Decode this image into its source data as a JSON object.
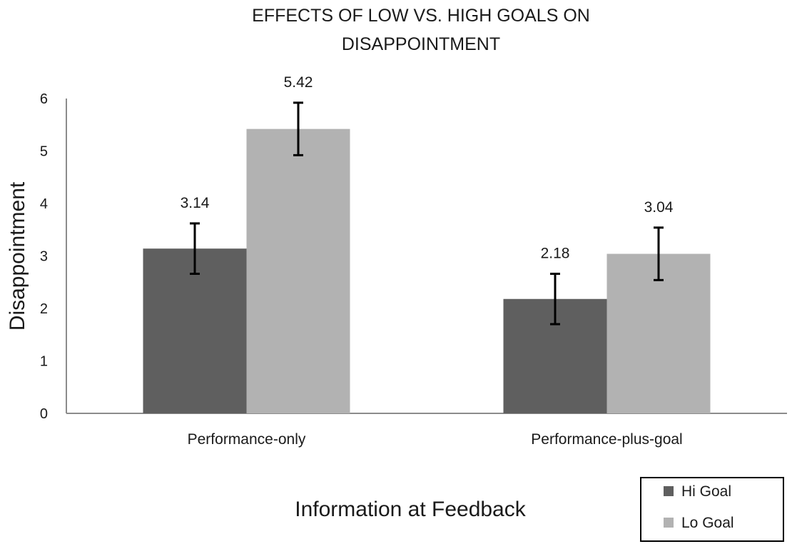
{
  "chart_data": {
    "type": "bar",
    "title_lines": [
      "EFFECTS OF LOW VS. HIGH GOALS ON",
      "DISAPPOINTMENT"
    ],
    "xlabel": "Information at Feedback",
    "ylabel": "Disappointment",
    "ylim": [
      0,
      6
    ],
    "yticks": [
      "0",
      "1",
      "2",
      "3",
      "4",
      "5",
      "6"
    ],
    "categories": [
      "Performance-only",
      "Performance-plus-goal"
    ],
    "series": [
      {
        "name": "Hi Goal",
        "color": "#5f5f5f",
        "values": [
          3.14,
          2.18
        ],
        "labels": [
          "3.14",
          "2.18"
        ],
        "error": [
          0.48,
          0.48
        ]
      },
      {
        "name": "Lo Goal",
        "color": "#b2b2b2",
        "values": [
          5.42,
          3.04
        ],
        "labels": [
          "5.42",
          "3.04"
        ],
        "error": [
          0.5,
          0.5
        ]
      }
    ],
    "legend_position": "bottom-right",
    "grid": false
  }
}
